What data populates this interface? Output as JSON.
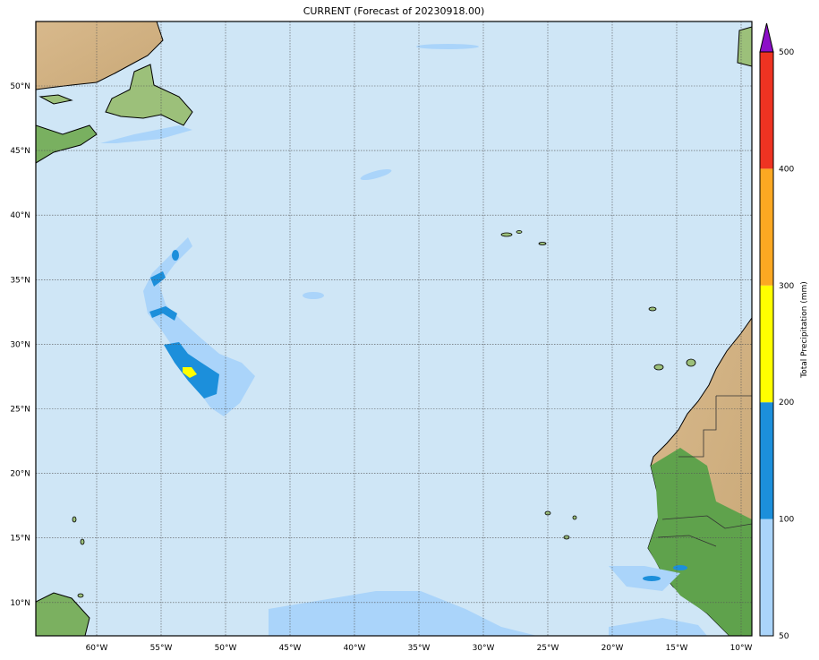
{
  "title": "CURRENT (Forecast of 20230918.00)",
  "map": {
    "projection": "cylindrical",
    "extent": {
      "lon": [
        -64.7,
        -9.2
      ],
      "lat": [
        7.4,
        55.0
      ]
    },
    "lon_ticks": [
      "60°W",
      "55°W",
      "50°W",
      "45°W",
      "40°W",
      "35°W",
      "30°W",
      "25°W",
      "20°W",
      "15°W",
      "10°W"
    ],
    "lat_ticks": [
      "10°N",
      "15°N",
      "20°N",
      "25°N",
      "30°N",
      "35°N",
      "40°N",
      "45°N",
      "50°N"
    ],
    "ocean_color": "#cfe6f6",
    "gridlines": "dotted"
  },
  "colorbar": {
    "label": "Total Precipitation (mm)",
    "ticks": [
      "50",
      "100",
      "200",
      "300",
      "400",
      "500"
    ],
    "colors": [
      "#aad4fa",
      "#1c8fdb",
      "#ffff00",
      "#fca822",
      "#ee3322"
    ],
    "extend_color": "#8c0fc8",
    "extend": "max"
  }
}
